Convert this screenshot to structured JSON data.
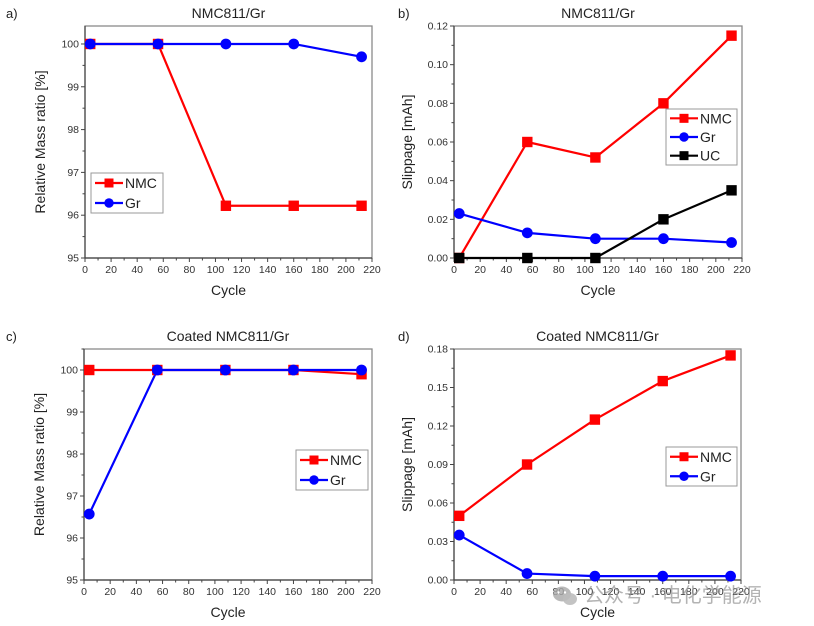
{
  "colors": {
    "NMC": "#ff0000",
    "Gr": "#0000ff",
    "UC": "#000000",
    "axis": "#555555",
    "legend_border": "#888888"
  },
  "watermark": {
    "icon": "wechat-icon",
    "text": "公众号 · 电化学能源"
  },
  "chart_data": [
    {
      "id": "a",
      "panel_label": "a)",
      "type": "line",
      "title": "NMC811/Gr",
      "xlabel": "Cycle",
      "ylabel": "Relative Mass ratio [%]",
      "xlim": [
        0,
        220
      ],
      "ylim": [
        95,
        100.42
      ],
      "xticks": [
        0,
        20,
        40,
        60,
        80,
        100,
        120,
        140,
        160,
        180,
        200,
        220
      ],
      "yticks": [
        95,
        96,
        97,
        98,
        99,
        100
      ],
      "ytick_decimals": 0,
      "legend": "left-middle",
      "x": [
        4,
        56,
        108,
        160,
        212
      ],
      "series": [
        {
          "name": "NMC",
          "marker": "square",
          "values": [
            100,
            100,
            96.22,
            96.22,
            96.22
          ]
        },
        {
          "name": "Gr",
          "marker": "circle",
          "values": [
            100,
            100,
            100,
            100,
            99.7
          ]
        }
      ]
    },
    {
      "id": "b",
      "panel_label": "b)",
      "type": "line",
      "title": "NMC811/Gr",
      "xlabel": "Cycle",
      "ylabel": "Slippage [mAh]",
      "xlim": [
        0,
        220
      ],
      "ylim": [
        0,
        0.12
      ],
      "xticks": [
        0,
        20,
        40,
        60,
        80,
        100,
        120,
        140,
        160,
        180,
        200,
        220
      ],
      "yticks": [
        0.0,
        0.02,
        0.04,
        0.06,
        0.08,
        0.1,
        0.12
      ],
      "ytick_decimals": 2,
      "legend": "right-middle",
      "x": [
        4,
        56,
        108,
        160,
        212
      ],
      "series": [
        {
          "name": "NMC",
          "marker": "square",
          "values": [
            0.0,
            0.06,
            0.052,
            0.08,
            0.115
          ]
        },
        {
          "name": "Gr",
          "marker": "circle",
          "values": [
            0.023,
            0.013,
            0.01,
            0.01,
            0.008
          ]
        },
        {
          "name": "UC",
          "marker": "square",
          "values": [
            0.0,
            0.0,
            0.0,
            0.02,
            0.035
          ]
        }
      ]
    },
    {
      "id": "c",
      "panel_label": "c)",
      "type": "line",
      "title": "Coated NMC811/Gr",
      "xlabel": "Cycle",
      "ylabel": "Relative Mass ratio [%]",
      "xlim": [
        0,
        220
      ],
      "ylim": [
        95,
        100.5
      ],
      "xticks": [
        0,
        20,
        40,
        60,
        80,
        100,
        120,
        140,
        160,
        180,
        200,
        220
      ],
      "yticks": [
        95,
        96,
        97,
        98,
        99,
        100
      ],
      "ytick_decimals": 0,
      "legend": "right-middle",
      "x": [
        4,
        56,
        108,
        160,
        212
      ],
      "series": [
        {
          "name": "NMC",
          "marker": "square",
          "values": [
            100,
            100,
            100,
            100,
            99.9
          ]
        },
        {
          "name": "Gr",
          "marker": "circle",
          "values": [
            96.57,
            100,
            100,
            100,
            100
          ]
        }
      ]
    },
    {
      "id": "d",
      "panel_label": "d)",
      "type": "line",
      "title": "Coated NMC811/Gr",
      "xlabel": "Cycle",
      "ylabel": "Slippage [mAh]",
      "xlim": [
        0,
        220
      ],
      "ylim": [
        0,
        0.18
      ],
      "xticks": [
        0,
        20,
        40,
        60,
        80,
        100,
        120,
        140,
        160,
        180,
        200,
        220
      ],
      "yticks": [
        0.0,
        0.03,
        0.06,
        0.09,
        0.12,
        0.15,
        0.18
      ],
      "ytick_decimals": 2,
      "legend": "right-middle",
      "x": [
        4,
        56,
        108,
        160,
        212
      ],
      "series": [
        {
          "name": "NMC",
          "marker": "square",
          "values": [
            0.05,
            0.09,
            0.125,
            0.155,
            0.175
          ]
        },
        {
          "name": "Gr",
          "marker": "circle",
          "values": [
            0.035,
            0.005,
            0.003,
            0.003,
            0.003
          ]
        }
      ]
    }
  ]
}
